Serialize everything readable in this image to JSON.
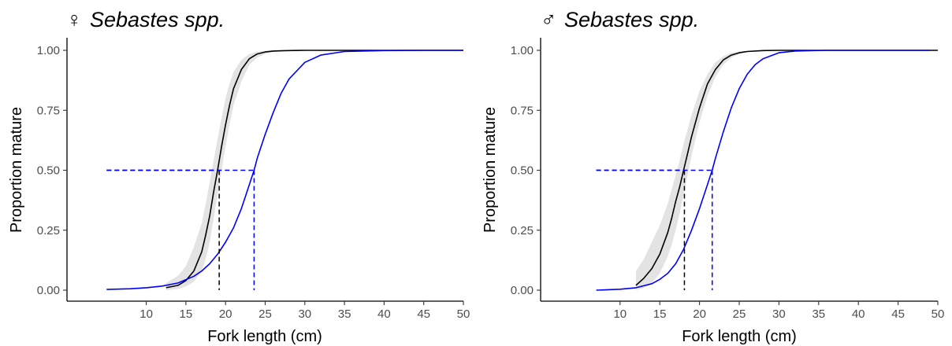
{
  "chart_data": [
    {
      "type": "line",
      "title_symbol": "♀",
      "title": "Sebastes spp.",
      "xlabel": "Fork length (cm)",
      "ylabel": "Proportion mature",
      "xlim": [
        0,
        50
      ],
      "ylim": [
        0,
        1
      ],
      "x_ticks": [
        10,
        15,
        20,
        25,
        30,
        35,
        40,
        45,
        50
      ],
      "y_ticks": [
        0,
        0.25,
        0.5,
        0.75,
        1
      ],
      "y_tick_labels": [
        "0.00",
        "0.25",
        "0.50",
        "0.75",
        "1.00"
      ],
      "grid": false,
      "series": [
        {
          "color": "#000000",
          "x": [
            12.5,
            14,
            15,
            16,
            17,
            17.5,
            18,
            18.5,
            19,
            19.5,
            20,
            20.5,
            21,
            22,
            23,
            24,
            25,
            26,
            27,
            28,
            30,
            33,
            38,
            45,
            50
          ],
          "y": [
            0.01,
            0.02,
            0.04,
            0.08,
            0.16,
            0.23,
            0.31,
            0.41,
            0.5,
            0.6,
            0.69,
            0.77,
            0.84,
            0.92,
            0.965,
            0.985,
            0.993,
            0.997,
            0.998,
            0.999,
            1.0,
            1.0,
            1.0,
            1.0,
            1.0
          ],
          "ci_lower": [
            0.0,
            0.005,
            0.015,
            0.035,
            0.08,
            0.13,
            0.2,
            0.3,
            0.4,
            0.5,
            0.6,
            0.69,
            0.77,
            0.87,
            0.94,
            0.97,
            0.985,
            0.993,
            0.996,
            0.998,
            0.999,
            1.0,
            1.0,
            1.0,
            1.0
          ],
          "ci_upper": [
            0.03,
            0.06,
            0.1,
            0.18,
            0.28,
            0.36,
            0.45,
            0.54,
            0.63,
            0.72,
            0.8,
            0.86,
            0.91,
            0.96,
            0.985,
            0.995,
            0.998,
            0.999,
            1.0,
            1.0,
            1.0,
            1.0,
            1.0,
            1.0,
            1.0
          ],
          "l50": 19.2
        },
        {
          "color": "#0000ff",
          "x": [
            5,
            8,
            10,
            12,
            14,
            16,
            17,
            18,
            19,
            20,
            21,
            22,
            23,
            23.6,
            24,
            25,
            26,
            27,
            28,
            30,
            32,
            35,
            40,
            45,
            50
          ],
          "y": [
            0.003,
            0.006,
            0.01,
            0.017,
            0.03,
            0.058,
            0.08,
            0.11,
            0.15,
            0.2,
            0.26,
            0.34,
            0.44,
            0.5,
            0.55,
            0.65,
            0.74,
            0.82,
            0.88,
            0.95,
            0.98,
            0.995,
            0.999,
            1.0,
            1.0
          ],
          "l50": 23.6
        }
      ],
      "hline_y": 0.5,
      "hline_x_start": 5
    },
    {
      "type": "line",
      "title_symbol": "♂",
      "title": "Sebastes spp.",
      "xlabel": "Fork length (cm)",
      "ylabel": "Proportion mature",
      "xlim": [
        0,
        50
      ],
      "ylim": [
        0,
        1
      ],
      "x_ticks": [
        10,
        15,
        20,
        25,
        30,
        35,
        40,
        45,
        50
      ],
      "y_ticks": [
        0,
        0.25,
        0.5,
        0.75,
        1
      ],
      "y_tick_labels": [
        "0.00",
        "0.25",
        "0.50",
        "0.75",
        "1.00"
      ],
      "grid": false,
      "series": [
        {
          "color": "#000000",
          "x": [
            12,
            13,
            14,
            15,
            16,
            16.5,
            17,
            17.5,
            18,
            18.5,
            19,
            20,
            21,
            22,
            23,
            24,
            25,
            26,
            28,
            30,
            35,
            40,
            50
          ],
          "y": [
            0.02,
            0.05,
            0.09,
            0.15,
            0.24,
            0.3,
            0.37,
            0.43,
            0.5,
            0.57,
            0.64,
            0.76,
            0.86,
            0.92,
            0.96,
            0.98,
            0.99,
            0.995,
            0.999,
            1.0,
            1.0,
            1.0,
            1.0
          ],
          "ci_lower": [
            0.0,
            0.01,
            0.03,
            0.07,
            0.14,
            0.19,
            0.25,
            0.32,
            0.4,
            0.48,
            0.56,
            0.7,
            0.81,
            0.89,
            0.94,
            0.97,
            0.985,
            0.993,
            0.998,
            1.0,
            1.0,
            1.0,
            1.0
          ],
          "ci_upper": [
            0.08,
            0.13,
            0.2,
            0.27,
            0.36,
            0.42,
            0.48,
            0.54,
            0.61,
            0.67,
            0.73,
            0.83,
            0.9,
            0.95,
            0.975,
            0.99,
            0.995,
            0.998,
            1.0,
            1.0,
            1.0,
            1.0,
            1.0
          ],
          "l50": 18.1
        },
        {
          "color": "#0000ff",
          "x": [
            7,
            10,
            12,
            14,
            15,
            16,
            17,
            18,
            19,
            20,
            21,
            21.6,
            22,
            23,
            24,
            25,
            26,
            27,
            28,
            30,
            32,
            36,
            40,
            45,
            49
          ],
          "y": [
            0.0,
            0.004,
            0.01,
            0.027,
            0.045,
            0.07,
            0.11,
            0.17,
            0.25,
            0.34,
            0.44,
            0.5,
            0.55,
            0.66,
            0.76,
            0.84,
            0.9,
            0.94,
            0.965,
            0.99,
            0.997,
            1.0,
            1.0,
            1.0,
            1.0
          ],
          "l50": 21.6
        }
      ],
      "hline_y": 0.5,
      "hline_x_start": 7
    }
  ]
}
